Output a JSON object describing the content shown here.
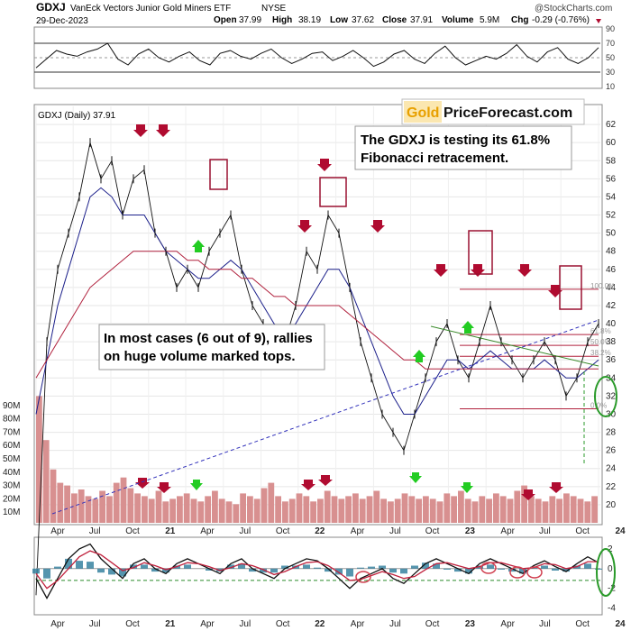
{
  "header": {
    "symbol": "GDXJ",
    "name": "VanEck Vectors Junior Gold Miners ETF",
    "exchange": "NYSE",
    "date": "29-Dec-2023",
    "open_label": "Open",
    "open": "37.99",
    "high_label": "High",
    "high": "38.19",
    "low_label": "Low",
    "low": "37.62",
    "close_label": "Close",
    "close": "37.91",
    "volume_label": "Volume",
    "volume": "5.9M",
    "chg_label": "Chg",
    "chg": "-0.29 (-0.76%)",
    "credit": "@StockCharts.com"
  },
  "chart_data": [
    {
      "panel": "indicator-top",
      "type": "line",
      "ylim": [
        10,
        90
      ],
      "ticks": [
        10,
        30,
        50,
        70,
        90
      ],
      "reference_lines": [
        30,
        50,
        70
      ],
      "series": [
        {
          "values": [
            36,
            48,
            60,
            55,
            52,
            58,
            62,
            70,
            48,
            40,
            55,
            62,
            50,
            44,
            52,
            58,
            46,
            40,
            56,
            60,
            52,
            48,
            56,
            62,
            50,
            42,
            48,
            56,
            58,
            46,
            52,
            60,
            50,
            38,
            44,
            55,
            60,
            48,
            42,
            56,
            66,
            50,
            40,
            46,
            52,
            48,
            56,
            68,
            52,
            44,
            58,
            64,
            48,
            42,
            50,
            64
          ]
        }
      ]
    },
    {
      "panel": "price",
      "type": "line",
      "title": "GDXJ (Daily) 37.91",
      "ylim": [
        18,
        64
      ],
      "y_ticks": [
        20,
        22,
        24,
        26,
        28,
        30,
        32,
        34,
        36,
        38,
        40,
        42,
        44,
        46,
        48,
        50,
        52,
        54,
        56,
        58,
        60,
        62
      ],
      "x_ticks": [
        "Apr",
        "Jul",
        "Oct",
        "21",
        "Apr",
        "Jul",
        "Oct",
        "22",
        "Apr",
        "Jul",
        "Oct",
        "23",
        "Apr",
        "Jul",
        "Oct",
        "24"
      ],
      "x_tick_t": [
        0,
        0.066,
        0.133,
        0.2,
        0.266,
        0.333,
        0.4,
        0.466,
        0.533,
        0.6,
        0.666,
        0.733,
        0.8,
        0.866,
        0.933,
        1.0
      ],
      "series": [
        {
          "values": [
            10,
            38,
            46,
            50,
            54,
            60,
            56,
            58,
            52,
            56,
            57,
            50,
            48,
            44,
            46,
            44,
            48,
            50,
            52,
            46,
            42,
            40,
            36,
            38,
            42,
            48,
            46,
            52,
            50,
            44,
            38,
            34,
            30,
            28,
            26,
            30,
            34,
            38,
            40,
            36,
            34,
            38,
            42,
            38,
            36,
            34,
            36,
            38,
            36,
            32,
            34,
            38,
            40
          ]
        },
        {
          "values": [
            30,
            36,
            42,
            46,
            50,
            54,
            55,
            54,
            52,
            52,
            52,
            50,
            48,
            47,
            46,
            45,
            45,
            46,
            47,
            46,
            44,
            42,
            40,
            39,
            40,
            42,
            44,
            46,
            46,
            44,
            41,
            38,
            35,
            32,
            30,
            30,
            32,
            34,
            36,
            36,
            35,
            36,
            37,
            36,
            35,
            35,
            35,
            36,
            35,
            34,
            34,
            35,
            36
          ]
        },
        {
          "values": [
            34,
            36,
            38,
            40,
            42,
            44,
            45,
            46,
            47,
            48,
            48,
            48,
            48,
            48,
            47,
            47,
            46,
            46,
            46,
            45,
            45,
            44,
            43,
            43,
            42,
            42,
            42,
            42,
            42,
            41,
            40,
            39,
            38,
            37,
            36,
            36,
            35,
            35,
            35,
            35,
            35,
            35,
            35,
            35,
            35,
            35,
            35,
            35,
            35,
            35,
            35,
            35,
            35
          ]
        }
      ],
      "fib_levels": [
        {
          "label": "100.0%",
          "value": 43.8
        },
        {
          "label": "61.8%",
          "value": 38.8
        },
        {
          "label": "50.0%",
          "value": 37.6
        },
        {
          "label": "38.2%",
          "value": 36.4
        },
        {
          "label": "0.0%",
          "value": 30.6
        }
      ],
      "annotations": [
        "The GDXJ is testing its 61.8% Fibonacci retracement.",
        "In most cases (6 out of 9), rallies on huge volume marked tops."
      ],
      "watermark": {
        "gold": "Gold",
        "rest": "PriceForecast.com"
      }
    },
    {
      "panel": "volume",
      "type": "bar",
      "y_ticks": [
        "10M",
        "20M",
        "30M",
        "40M",
        "50M",
        "60M",
        "70M",
        "80M",
        "90M"
      ],
      "ylim": [
        0,
        100
      ],
      "values": [
        95,
        62,
        40,
        30,
        28,
        22,
        25,
        20,
        18,
        24,
        20,
        30,
        34,
        26,
        22,
        20,
        18,
        24,
        16,
        18,
        20,
        22,
        18,
        16,
        20,
        24,
        18,
        16,
        14,
        22,
        20,
        18,
        26,
        30,
        20,
        16,
        18,
        22,
        20,
        16,
        18,
        24,
        20,
        18,
        20,
        22,
        18,
        20,
        24,
        18,
        16,
        18,
        22,
        20,
        18,
        20,
        18,
        16,
        22,
        20,
        24,
        18,
        16,
        20,
        18,
        22,
        20,
        18,
        24,
        28,
        20,
        18,
        16,
        20,
        18,
        22,
        20,
        18,
        16,
        20
      ]
    },
    {
      "panel": "indicator-bottom",
      "type": "line",
      "ylim": [
        -4.5,
        3
      ],
      "y_ticks": [
        2,
        0,
        -2,
        -4
      ],
      "series": [
        {
          "values": [
            -1,
            -3,
            -1,
            1,
            2,
            2.5,
            1,
            0,
            -1,
            0.5,
            1,
            0,
            -0.5,
            0.5,
            1,
            0.5,
            0,
            -0.5,
            0.5,
            1,
            0,
            -0.5,
            -1,
            0,
            0.5,
            1,
            0.8,
            0,
            -1,
            -2,
            -1,
            -0.5,
            0,
            -1,
            -1.5,
            -0.5,
            0.5,
            1,
            0.5,
            0,
            -0.5,
            0.5,
            1,
            0.5,
            0,
            -0.5,
            0.3,
            0.8,
            0.2,
            -0.3,
            0.5,
            1.2,
            0.6
          ]
        },
        {
          "values": [
            -0.5,
            -2,
            -1.2,
            0,
            1.2,
            1.8,
            1.4,
            0.6,
            -0.2,
            0.1,
            0.6,
            0.3,
            -0.1,
            0.2,
            0.6,
            0.5,
            0.2,
            -0.2,
            0.1,
            0.5,
            0.3,
            -0.1,
            -0.6,
            -0.3,
            0.2,
            0.6,
            0.7,
            0.3,
            -0.4,
            -1.2,
            -1.1,
            -0.7,
            -0.3,
            -0.6,
            -1,
            -0.8,
            -0.1,
            0.5,
            0.6,
            0.3,
            0,
            0.2,
            0.6,
            0.6,
            0.3,
            0,
            0.1,
            0.5,
            0.4,
            0,
            0.2,
            0.7,
            0.7
          ]
        }
      ],
      "histogram": [
        -0.5,
        -1,
        0.2,
        1,
        0.8,
        0.7,
        -0.4,
        -0.6,
        -0.8,
        0.4,
        0.4,
        -0.3,
        -0.4,
        0.3,
        0.4,
        0,
        -0.2,
        -0.3,
        0.4,
        0.5,
        -0.3,
        -0.4,
        -0.4,
        0.3,
        0.3,
        0.4,
        0.1,
        -0.3,
        -0.6,
        -0.8,
        0.1,
        0.2,
        0.3,
        -0.4,
        -0.5,
        0.3,
        0.6,
        0.5,
        -0.1,
        -0.3,
        -0.5,
        0.3,
        0.4,
        -0.1,
        -0.3,
        -0.5,
        0.2,
        0.3,
        -0.2,
        -0.3,
        0.3,
        0.5,
        -0.1
      ]
    }
  ],
  "colors": {
    "price": "#111111",
    "ma_short": "#1b1f8a",
    "ma_long": "#b0203c",
    "fib": "#b0203c",
    "box": "#9a1030",
    "up_arrow": "#22cc22",
    "down_arrow": "#b00b30",
    "trend_blue": "#3333bb",
    "trend_green": "#3a8a2a",
    "ellipse_green": "#2a9a2a",
    "volume": "#d89090",
    "gold": "#e8a000",
    "histogram": "#2a7a9a"
  }
}
